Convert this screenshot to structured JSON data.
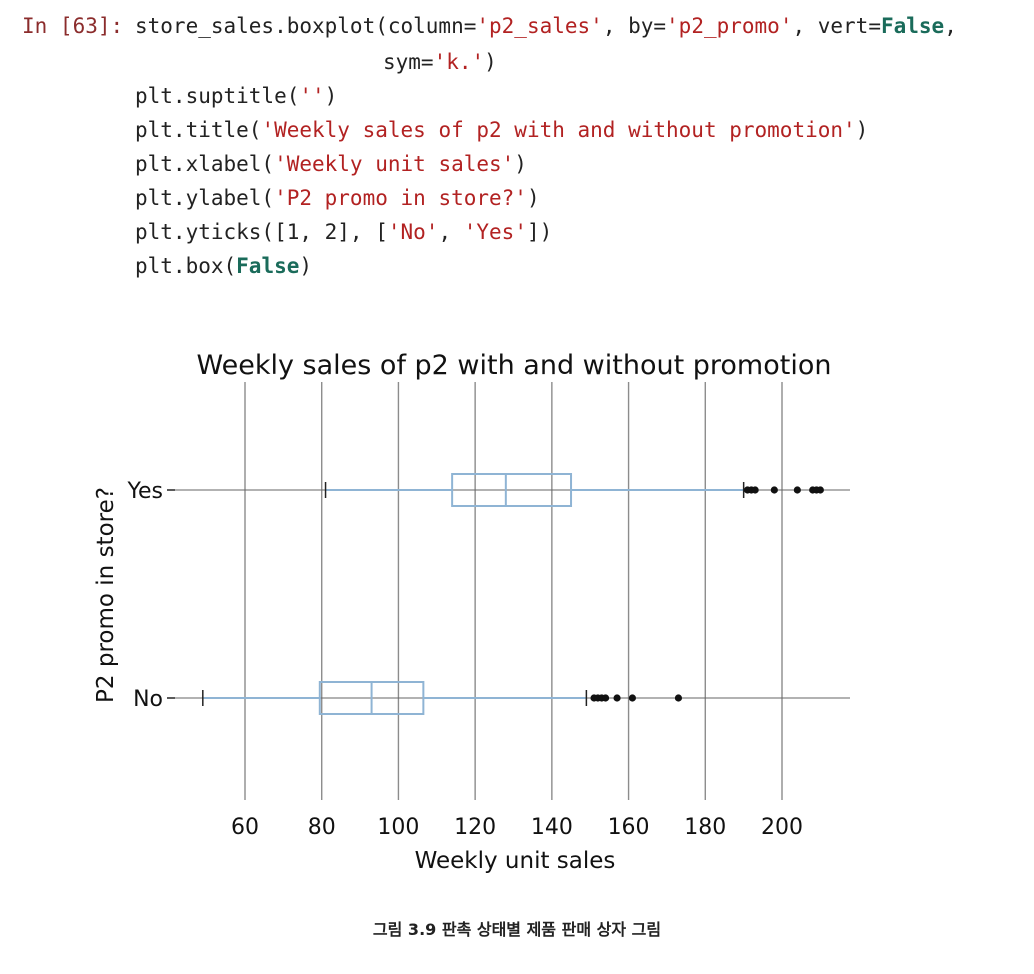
{
  "code": {
    "prompt_label": "In [63]:",
    "lines": [
      [
        {
          "t": "store_sales.boxplot(column="
        },
        {
          "t": "'p2_sales'",
          "c": "s"
        },
        {
          "t": ", by="
        },
        {
          "t": "'p2_promo'",
          "c": "s"
        },
        {
          "t": ", vert="
        },
        {
          "t": "False",
          "c": "kw"
        },
        {
          "t": ","
        }
      ],
      [
        {
          "t": "sym="
        },
        {
          "t": "'k.'",
          "c": "s"
        },
        {
          "t": ")"
        }
      ],
      [
        {
          "t": "plt.suptitle("
        },
        {
          "t": "''",
          "c": "s"
        },
        {
          "t": ")"
        }
      ],
      [
        {
          "t": "plt.title("
        },
        {
          "t": "'Weekly sales of p2 with and without promotion'",
          "c": "s"
        },
        {
          "t": ")"
        }
      ],
      [
        {
          "t": "plt.xlabel("
        },
        {
          "t": "'Weekly unit sales'",
          "c": "s"
        },
        {
          "t": ")"
        }
      ],
      [
        {
          "t": "plt.ylabel("
        },
        {
          "t": "'P2 promo in store?'",
          "c": "s"
        },
        {
          "t": ")"
        }
      ],
      [
        {
          "t": "plt.yticks([1, 2], ["
        },
        {
          "t": "'No'",
          "c": "s"
        },
        {
          "t": ", "
        },
        {
          "t": "'Yes'",
          "c": "s"
        },
        {
          "t": "])"
        }
      ],
      [
        {
          "t": "plt.box("
        },
        {
          "t": "False",
          "c": "kw"
        },
        {
          "t": ")"
        }
      ]
    ]
  },
  "chart_data": {
    "type": "boxplot",
    "orientation": "horizontal",
    "title": "Weekly sales of p2 with and without promotion",
    "xlabel": "Weekly unit sales",
    "ylabel": "P2 promo in store?",
    "xlim": [
      38,
      218
    ],
    "xticks": [
      60,
      80,
      100,
      120,
      140,
      160,
      180,
      200
    ],
    "grid": "vertical",
    "colors": {
      "box": "#8fb4d4",
      "grid": "#8c8c8c",
      "outlier": "#111111",
      "text": "#111111"
    },
    "series": [
      {
        "name": "No",
        "whisker_low": 49,
        "q1": 79.5,
        "median": 93,
        "q3": 106.5,
        "whisker_high": 149,
        "outliers": [
          151,
          152,
          153,
          154,
          157,
          161,
          173
        ]
      },
      {
        "name": "Yes",
        "whisker_low": 81,
        "q1": 114,
        "median": 128,
        "q3": 145,
        "whisker_high": 190,
        "outliers": [
          191,
          192,
          193,
          198,
          204,
          208,
          209,
          210
        ]
      }
    ]
  },
  "caption": "그림 3.9 판촉 상태별 제품 판매 상자 그림"
}
